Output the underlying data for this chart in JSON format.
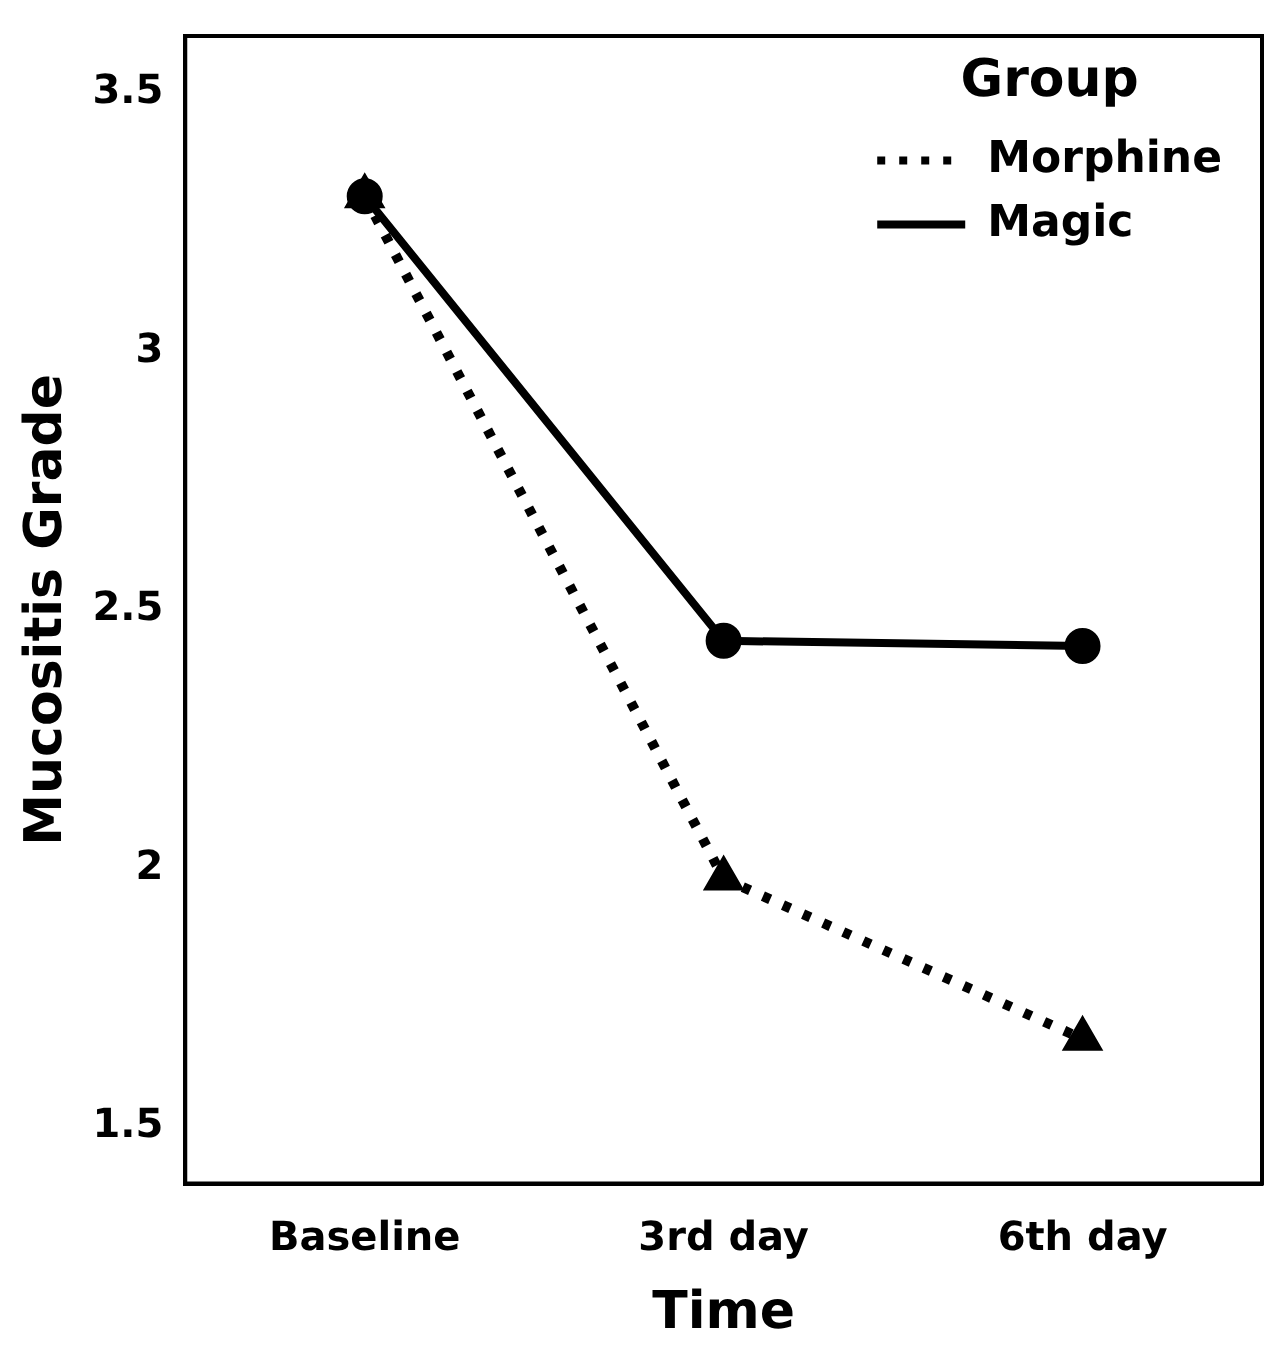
{
  "chart_data": {
    "type": "line",
    "xlabel": "Time",
    "ylabel": "Mucositis Grade",
    "legend_title": "Group",
    "legend": "top right",
    "grid": false,
    "categories": [
      "Baseline",
      "3rd day",
      "6th day"
    ],
    "ylim": [
      1.39,
      3.61
    ],
    "yticks": [
      1.5,
      2,
      2.5,
      3,
      3.5
    ],
    "series": [
      {
        "name": "Morphine",
        "color": "#000000",
        "values": [
          3.3,
          1.98,
          1.67
        ],
        "marker": "triangle",
        "line_style": "dotted"
      },
      {
        "name": "Magic",
        "color": "#000000",
        "values": [
          3.3,
          2.44,
          2.43
        ],
        "marker": "circle",
        "line_style": "solid"
      }
    ]
  }
}
